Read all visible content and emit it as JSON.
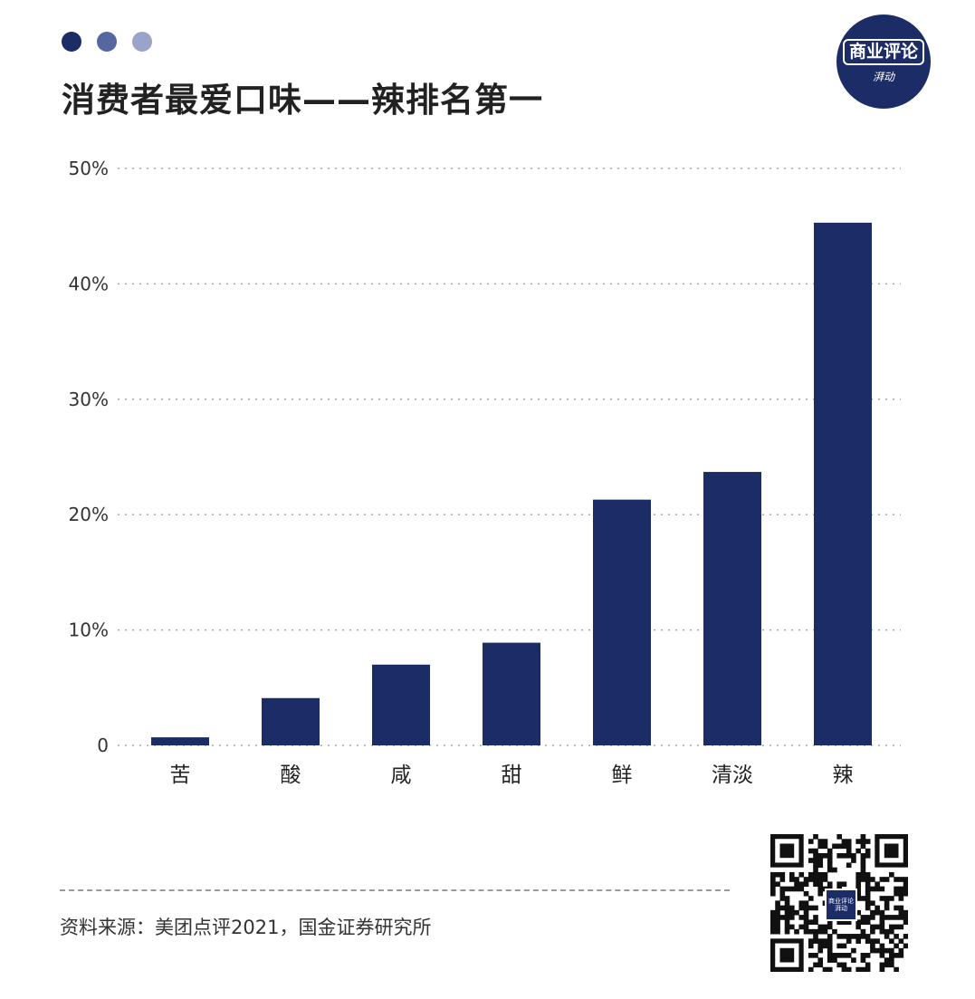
{
  "header": {
    "title": "消费者最爱口味——辣排名第一",
    "dot_colors": [
      "#1c2c66",
      "#5566a0",
      "#9aa3c8"
    ]
  },
  "logo": {
    "main": "商业评论",
    "sub": "湃动",
    "color": "#1c2c66"
  },
  "chart_data": {
    "type": "bar",
    "title": "消费者最爱口味——辣排名第一",
    "categories": [
      "苦",
      "酸",
      "咸",
      "甜",
      "鲜",
      "清淡",
      "辣"
    ],
    "values": [
      0.7,
      4.1,
      7.0,
      8.9,
      21.3,
      23.7,
      45.3
    ],
    "unit": "%",
    "ylim": [
      0,
      50
    ],
    "yticks": [
      "0",
      "10%",
      "20%",
      "30%",
      "40%",
      "50%"
    ],
    "xlabel": "",
    "ylabel": "",
    "grid": true,
    "bar_color": "#1c2c66"
  },
  "footer": {
    "source": "资料来源：美团点评2021，国金证券研究所",
    "qr_center": [
      "商业评论",
      "湃动"
    ]
  }
}
